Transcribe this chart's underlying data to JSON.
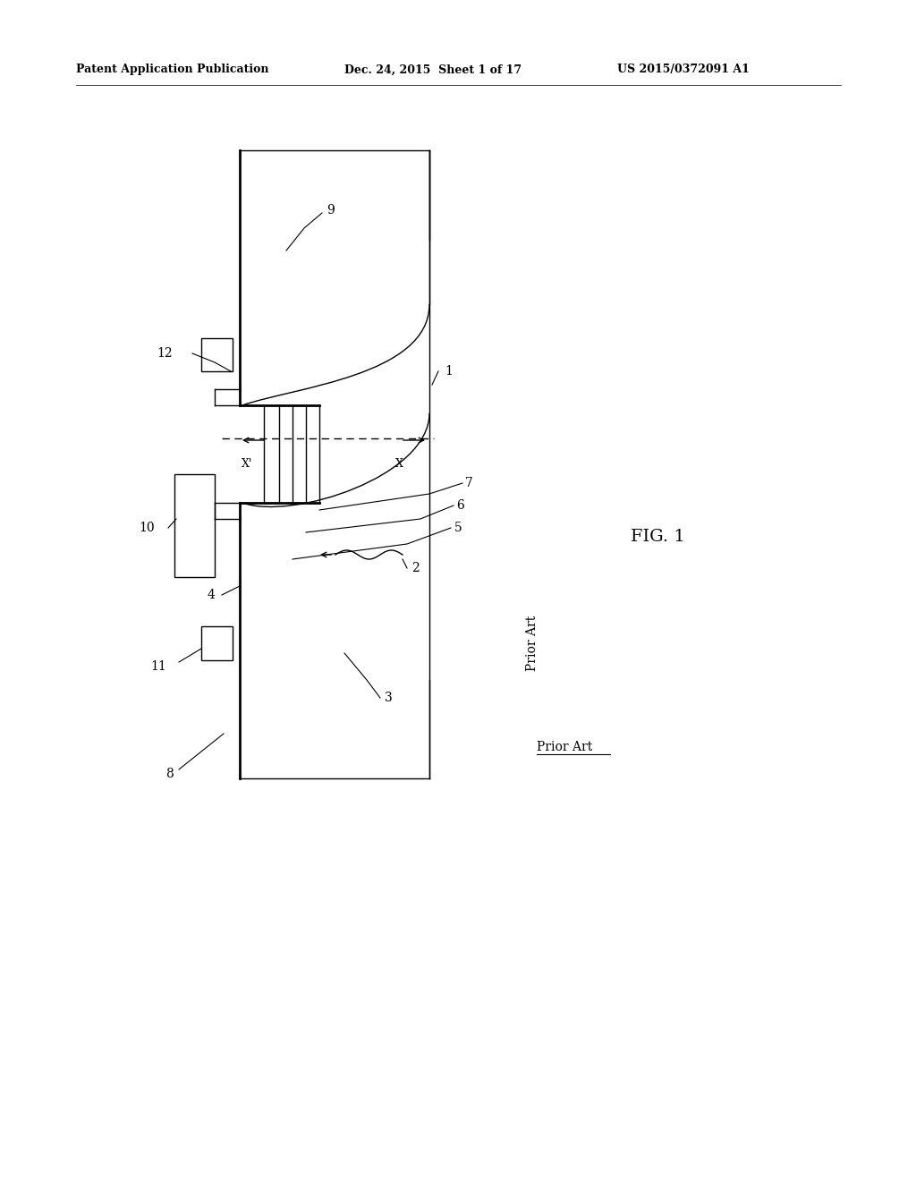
{
  "background_color": "#ffffff",
  "header_left": "Patent Application Publication",
  "header_mid": "Dec. 24, 2015  Sheet 1 of 17",
  "header_right": "US 2015/0372091 A1",
  "fig_label": "FIG. 1",
  "prior_art_label": "Prior Art"
}
